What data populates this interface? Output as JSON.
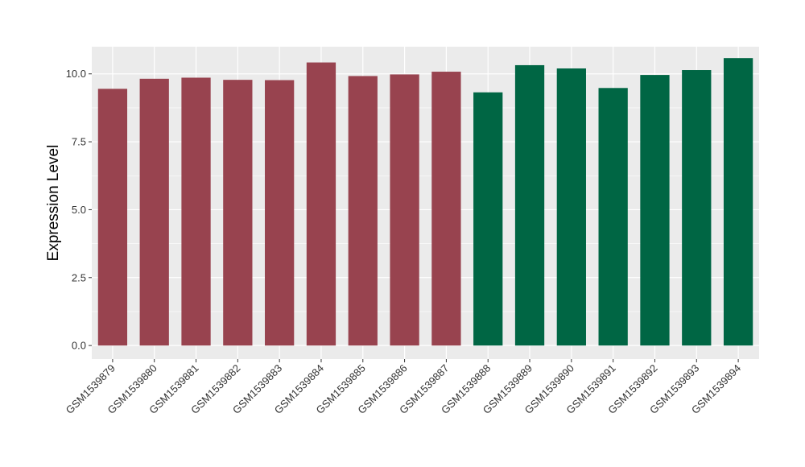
{
  "chart_data": {
    "type": "bar",
    "title": "",
    "xlabel": "",
    "ylabel": "Expression Level",
    "ylim": [
      -0.5,
      11.0
    ],
    "yticks": [
      0.0,
      2.5,
      5.0,
      7.5,
      10.0
    ],
    "ytick_labels": [
      "0.0",
      "2.5",
      "5.0",
      "7.5",
      "10.0"
    ],
    "grid": true,
    "legend": "none",
    "categories": [
      "GSM1539879",
      "GSM1539880",
      "GSM1539881",
      "GSM1539882",
      "GSM1539883",
      "GSM1539884",
      "GSM1539885",
      "GSM1539886",
      "GSM1539887",
      "GSM1539888",
      "GSM1539889",
      "GSM1539890",
      "GSM1539891",
      "GSM1539892",
      "GSM1539893",
      "GSM1539894"
    ],
    "values": [
      9.45,
      9.82,
      9.86,
      9.78,
      9.77,
      10.42,
      9.92,
      9.98,
      10.08,
      9.32,
      10.32,
      10.2,
      9.48,
      9.96,
      10.14,
      10.58
    ],
    "bar_colors": [
      "#98434F",
      "#98434F",
      "#98434F",
      "#98434F",
      "#98434F",
      "#98434F",
      "#98434F",
      "#98434F",
      "#98434F",
      "#006644",
      "#006644",
      "#006644",
      "#006644",
      "#006644",
      "#006644",
      "#006644"
    ],
    "panel_background": "#EBEBEB",
    "gridline_color": "#FFFFFF"
  }
}
